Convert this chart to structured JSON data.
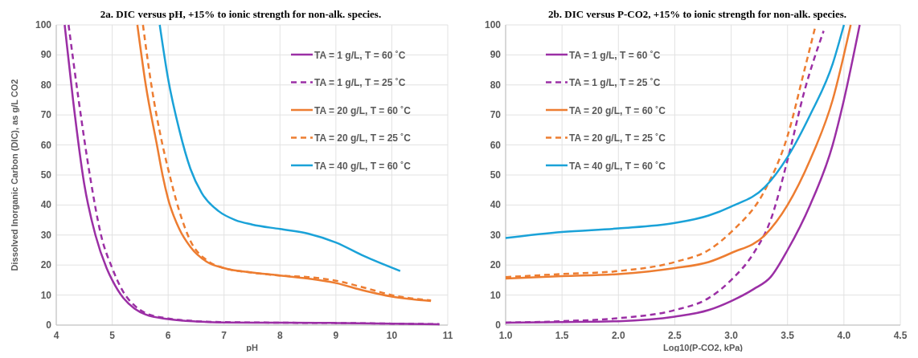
{
  "chart_data": [
    {
      "type": "line",
      "title": "2a. DIC versus pH, +15% to ionic strength for non-alk. species.",
      "xlabel": "pH",
      "ylabel": "Dissolved Inorganic Carbon (DIC), as g/L CO2",
      "xlim": [
        4,
        11
      ],
      "xticks": [
        4,
        5,
        6,
        7,
        8,
        9,
        10,
        11
      ],
      "ylim": [
        0,
        100
      ],
      "yticks": [
        0,
        10,
        20,
        30,
        40,
        50,
        60,
        70,
        80,
        90,
        100
      ],
      "grid": true,
      "legend": "top right",
      "marker": "none",
      "series": [
        {
          "name": "TA = 1 g/L, T = 60 ˚C",
          "color": "#9b2fa5",
          "line_style": "solid",
          "x": [
            4.15,
            4.3,
            4.5,
            4.7,
            4.9,
            5.0,
            5.2,
            5.4,
            5.6,
            6.0,
            6.5,
            7,
            8,
            9,
            10,
            10.85
          ],
          "values": [
            100,
            75,
            47,
            30,
            19,
            15,
            9,
            5.5,
            3.5,
            2,
            1.2,
            0.9,
            0.8,
            0.7,
            0.5,
            0.3
          ]
        },
        {
          "name": "TA = 1 g/L, T = 25 ˚C",
          "color": "#9b2fa5",
          "line_style": "dashed",
          "x": [
            4.22,
            4.4,
            4.6,
            4.8,
            5.0,
            5.2,
            5.4,
            5.6,
            6.0,
            6.5,
            7,
            8,
            9,
            10,
            10.85
          ],
          "values": [
            100,
            75,
            50,
            30,
            19,
            11,
            6.5,
            4,
            2.2,
            1.3,
            1,
            0.8,
            0.7,
            0.5,
            0.3
          ]
        },
        {
          "name": "TA = 20 g/L, T = 60 ˚C",
          "color": "#ed7d31",
          "line_style": "solid",
          "x": [
            5.45,
            5.6,
            5.8,
            5.9,
            6.0,
            6.2,
            6.4,
            6.7,
            7,
            7.5,
            8,
            8.5,
            9,
            9.5,
            10,
            10.7
          ],
          "values": [
            100,
            80,
            60,
            50,
            42,
            32,
            26,
            21,
            19,
            17.5,
            16.5,
            15.5,
            14,
            11.5,
            9.5,
            8
          ]
        },
        {
          "name": "TA = 20 g/L, T = 25 ˚C",
          "color": "#ed7d31",
          "line_style": "dashed",
          "x": [
            5.55,
            5.7,
            5.9,
            6.0,
            6.2,
            6.4,
            6.7,
            7,
            7.5,
            8,
            8.5,
            9,
            9.5,
            10,
            10.7
          ],
          "values": [
            100,
            80,
            60,
            52,
            38,
            28,
            21.5,
            19,
            17.5,
            16.5,
            16,
            14.8,
            12.5,
            10,
            8.2
          ]
        },
        {
          "name": "TA = 40 g/L, T = 60 ˚C",
          "color": "#1aa2d8",
          "line_style": "solid",
          "x": [
            5.85,
            6.0,
            6.2,
            6.4,
            6.6,
            6.9,
            7.2,
            7.5,
            8,
            8.5,
            9,
            9.5,
            10.15
          ],
          "values": [
            100,
            82,
            65,
            52,
            44,
            38,
            35,
            33.5,
            32,
            30.5,
            27.5,
            23,
            18
          ]
        }
      ]
    },
    {
      "type": "line",
      "title": "2b. DIC versus P-CO2, +15% to ionic strength for non-alk. species.",
      "xlabel": "Log10(P-CO2, kPa)",
      "xlim": [
        1,
        4.5
      ],
      "xticks": [
        {
          "value": 1,
          "label": "1.0"
        },
        1.5,
        {
          "value": 2,
          "label": "2.0"
        },
        2.5,
        {
          "value": 3,
          "label": "3.0"
        },
        3.5,
        {
          "value": 4,
          "label": "4.0"
        },
        4.5
      ],
      "ylim": [
        0,
        100
      ],
      "yticks": [
        0,
        10,
        20,
        30,
        40,
        50,
        60,
        70,
        80,
        90,
        100
      ],
      "grid": true,
      "legend": "top left",
      "marker": "none",
      "series": [
        {
          "name": "TA = 1 g/L, T = 60 ˚C",
          "color": "#9b2fa5",
          "line_style": "solid",
          "x": [
            1,
            1.5,
            2,
            2.5,
            2.8,
            3.0,
            3.2,
            3.35,
            3.5,
            3.7,
            3.9,
            4.0,
            4.14
          ],
          "values": [
            0.8,
            1,
            1.3,
            2.8,
            5,
            8,
            12,
            16,
            25,
            40,
            60,
            75,
            100
          ]
        },
        {
          "name": "TA = 1 g/L, T = 25 ˚C",
          "color": "#9b2fa5",
          "line_style": "dashed",
          "x": [
            1,
            1.5,
            2,
            2.5,
            2.8,
            3.0,
            3.2,
            3.35,
            3.5,
            3.65,
            3.82
          ],
          "values": [
            0.8,
            1.3,
            2.3,
            5,
            9,
            15,
            24,
            35,
            55,
            78,
            98
          ]
        },
        {
          "name": "TA = 20 g/L, T = 60 ˚C",
          "color": "#ed7d31",
          "line_style": "solid",
          "x": [
            1,
            1.5,
            2,
            2.5,
            2.8,
            3.0,
            3.3,
            3.5,
            3.7,
            3.9,
            4.06
          ],
          "values": [
            15.5,
            16.3,
            17,
            19,
            21,
            24,
            30,
            40,
            55,
            75,
            100
          ]
        },
        {
          "name": "TA = 20 g/L, T = 25 ˚C",
          "color": "#ed7d31",
          "line_style": "dashed",
          "x": [
            1,
            1.5,
            2,
            2.5,
            2.8,
            3.0,
            3.3,
            3.5,
            3.65,
            3.75
          ],
          "values": [
            16,
            17,
            18,
            21,
            25,
            31,
            45,
            63,
            85,
            100
          ]
        },
        {
          "name": "TA = 40 g/L, T = 60 ˚C",
          "color": "#1aa2d8",
          "line_style": "solid",
          "x": [
            1,
            1.5,
            2,
            2.5,
            2.8,
            3.0,
            3.3,
            3.5,
            3.7,
            3.9,
            4.0
          ],
          "values": [
            29,
            31,
            32.2,
            34,
            36.5,
            39.5,
            46,
            56,
            70,
            87,
            100
          ]
        }
      ]
    }
  ]
}
